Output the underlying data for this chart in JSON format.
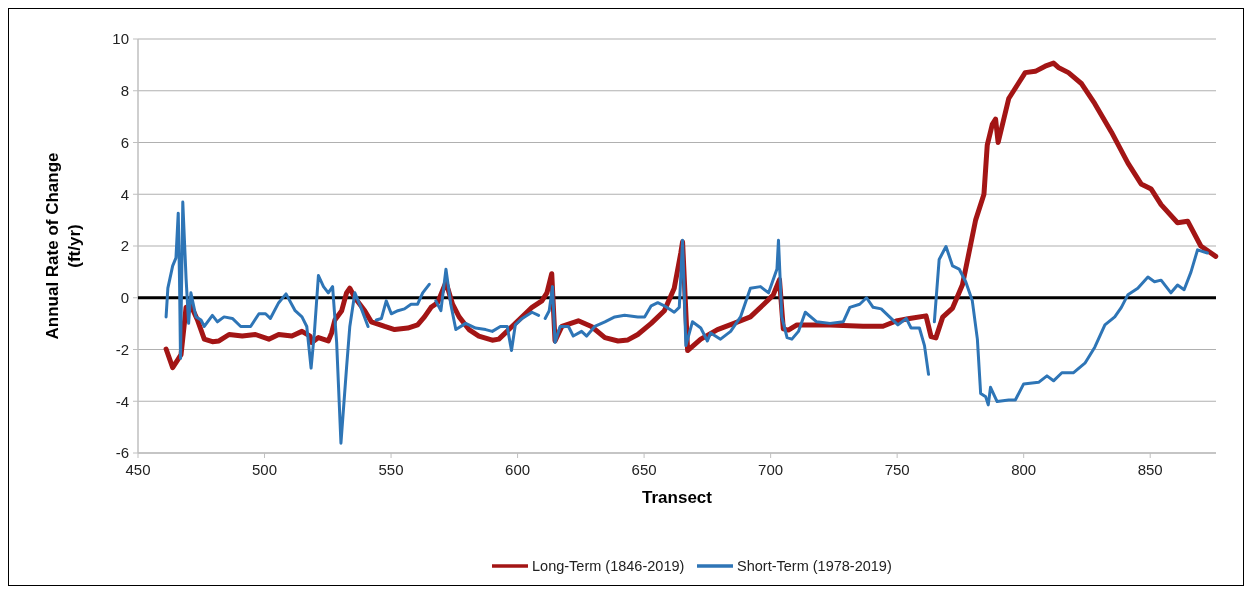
{
  "chart_data": {
    "type": "line",
    "xlabel": "Transect",
    "ylabel": "Annual Rate of Change (ft/yr)",
    "xlim": [
      450,
      876
    ],
    "xticks": [
      450,
      500,
      550,
      600,
      650,
      700,
      750,
      800,
      850
    ],
    "ylim": [
      -6,
      10
    ],
    "yticks": [
      -6,
      -4,
      -2,
      0,
      2,
      4,
      6,
      8,
      10
    ],
    "grid": "y",
    "legend": "bottom",
    "marker": "none",
    "line_style": "solid",
    "ref_lines": [
      {
        "axis": "y",
        "value": 0,
        "color": "#000000"
      }
    ],
    "series": [
      {
        "name": "Long-Term (1846-2019)",
        "color": "#a31515",
        "x": [
          461.1,
          463.7,
          465.7,
          467,
          469,
          470.9,
          473.5,
          476.2,
          479.4,
          482,
          486,
          491.2,
          496.4,
          501.7,
          505.6,
          510.8,
          514.8,
          518,
          518.7,
          521.3,
          525.2,
          526.5,
          527.8,
          530.5,
          532.4,
          533.7,
          535.7,
          539.6,
          542.2,
          547.5,
          551.4,
          556.6,
          560.5,
          563.2,
          565.8,
          568.4,
          571.7,
          574.3,
          576.9,
          580.8,
          584.7,
          590,
          592.6,
          597.8,
          601.8,
          605.7,
          609.6,
          611.6,
          613.5,
          614.8,
          617.5,
          624,
          629.2,
          634.5,
          639.7,
          643.6,
          647.5,
          652.8,
          658,
          661.9,
          664.5,
          665.2,
          667.2,
          672.4,
          679,
          685.5,
          692,
          697.3,
          701,
          703.5,
          705,
          707,
          710.4,
          723.5,
          736.5,
          744.4,
          749.6,
          754.9,
          761.4,
          763.4,
          765.3,
          768,
          771.9,
          775.8,
          781,
          784.3,
          785.6,
          787.6,
          788.9,
          789.9,
          794.1,
          798,
          800.6,
          804.6,
          808.5,
          811.8,
          813.7,
          817.7,
          822.9,
          828.1,
          834.7,
          841.2,
          846.4,
          850.4,
          854.3,
          860.8,
          864.8,
          870,
          875.9
        ],
        "values": [
          -1.98,
          -2.7,
          -2.4,
          -2.2,
          -0.37,
          -0.3,
          -0.86,
          -1.6,
          -1.7,
          -1.67,
          -1.42,
          -1.48,
          -1.42,
          -1.6,
          -1.42,
          -1.48,
          -1.3,
          -1.48,
          -1.73,
          -1.54,
          -1.67,
          -1.36,
          -0.86,
          -0.5,
          0.19,
          0.37,
          0,
          -0.5,
          -0.93,
          -1.11,
          -1.23,
          -1.17,
          -1.05,
          -0.74,
          -0.37,
          -0.19,
          0.6,
          -0.25,
          -0.74,
          -1.23,
          -1.48,
          -1.64,
          -1.6,
          -1.11,
          -0.74,
          -0.37,
          -0.12,
          0.19,
          0.93,
          -1.67,
          -1.11,
          -0.89,
          -1.11,
          -1.54,
          -1.67,
          -1.63,
          -1.42,
          -0.99,
          -0.5,
          0.37,
          1.73,
          2.16,
          -2.04,
          -1.6,
          -1.23,
          -0.99,
          -0.74,
          -0.25,
          0.1,
          0.7,
          -1.2,
          -1.25,
          -1.05,
          -1.05,
          -1.1,
          -1.1,
          -0.9,
          -0.8,
          -0.7,
          -1.5,
          -1.55,
          -0.75,
          -0.4,
          0.5,
          3,
          4,
          5.9,
          6.7,
          6.9,
          6,
          7.7,
          8.3,
          8.7,
          8.75,
          8.95,
          9.07,
          8.9,
          8.7,
          8.27,
          7.5,
          6.4,
          5.2,
          4.4,
          4.2,
          3.6,
          2.9,
          2.96,
          2,
          1.6
        ]
      },
      {
        "name": "Short-Term (1978-2019)",
        "color": "#2e75b6",
        "x": [
          461.1,
          461.8,
          463.7,
          465,
          465.9,
          466.4,
          466.8,
          467.7,
          469,
          470,
          470.9,
          472.9,
          474.9,
          476.2,
          479.4,
          481.4,
          484,
          487.3,
          490.6,
          494.5,
          497.8,
          500.4,
          502.3,
          505.6,
          508.5,
          512.1,
          514.8,
          516.7,
          518.4,
          519.7,
          521.3,
          523.3,
          525.2,
          526.9,
          528.5,
          530.2,
          532.4,
          533.7,
          535.7,
          538.3,
          540.9,
          542.5,
          544.2,
          546.2,
          548.1,
          550.1,
          552.7,
          555.3,
          557.9,
          560.5,
          562.5,
          565.1,
          566.4,
          567.7,
          569.7,
          571.7,
          573.6,
          575.6,
          579.5,
          583.4,
          587.4,
          590,
          593.2,
          595.9,
          597.6,
          599.1,
          601.8,
          605.7,
          608.3,
          609.6,
          610.9,
          612.5,
          613.8,
          614.8,
          616.8,
          620.1,
          622,
          625.3,
          627.3,
          630.5,
          634.5,
          638.4,
          642.3,
          647.5,
          650.2,
          652.8,
          655.4,
          658,
          661.9,
          663.9,
          665.2,
          666.5,
          669.1,
          672.4,
          675,
          676.3,
          680.2,
          684.2,
          688.1,
          692,
          696,
          699.2,
          702.5,
          703.1,
          704.4,
          706.5,
          708.4,
          711,
          713.7,
          718.2,
          723.5,
          728.7,
          731.3,
          735.2,
          737.9,
          740.5,
          743.7,
          747,
          750.3,
          753.6,
          755.5,
          758.8,
          760.8,
          762.4,
          763.5,
          764.7,
          766.6,
          769.3,
          771.9,
          774.5,
          777.1,
          779.7,
          781.7,
          783,
          785,
          786,
          786.9,
          789.5,
          794.1,
          796.7,
          800,
          805.9,
          809.2,
          811.8,
          815.1,
          819.6,
          824.2,
          828.1,
          832.1,
          836,
          838.6,
          841.2,
          845.1,
          849.1,
          851.7,
          854.3,
          858.2,
          860.8,
          863.4,
          866.1,
          868.7,
          872.6
        ],
        "values": [
          -0.74,
          0.37,
          1.23,
          1.54,
          3.27,
          0.74,
          -2.35,
          3.7,
          0.74,
          -0.99,
          0.19,
          -0.74,
          -0.86,
          -1.11,
          -0.68,
          -0.93,
          -0.74,
          -0.8,
          -1.11,
          -1.11,
          -0.62,
          -0.62,
          -0.8,
          -0.19,
          0.15,
          -0.5,
          -0.74,
          -1.11,
          -2.72,
          -1.36,
          0.86,
          0.43,
          0.19,
          0.43,
          -1.73,
          -5.62,
          -2.72,
          -1.11,
          0.19,
          -0.43,
          -1.11,
          null,
          -0.86,
          -0.8,
          -0.12,
          -0.62,
          -0.5,
          -0.43,
          -0.25,
          -0.25,
          0.19,
          0.52,
          null,
          -0.12,
          -0.5,
          1.1,
          -0.25,
          -1.23,
          -0.99,
          -1.17,
          -1.23,
          -1.3,
          -1.11,
          -1.11,
          -2.04,
          -1.05,
          -0.8,
          -0.56,
          -0.68,
          null,
          -0.8,
          -0.5,
          0.43,
          -1.73,
          -1.11,
          -1.11,
          -1.48,
          -1.3,
          -1.48,
          -1.11,
          -0.93,
          -0.74,
          -0.68,
          -0.74,
          -0.74,
          -0.31,
          -0.19,
          -0.31,
          -0.56,
          -0.37,
          2.22,
          -1.85,
          -0.93,
          -1.17,
          -1.67,
          -1.36,
          -1.6,
          -1.3,
          -0.74,
          0.37,
          0.43,
          0.19,
          1.11,
          2.22,
          -0.74,
          -1.54,
          -1.6,
          -1.3,
          -0.56,
          -0.93,
          -0.99,
          -0.93,
          -0.37,
          -0.25,
          0,
          -0.37,
          -0.43,
          -0.74,
          -1.05,
          -0.8,
          -1.17,
          -1.17,
          -1.85,
          -2.96,
          null,
          -0.93,
          1.48,
          1.98,
          1.23,
          1.11,
          0.62,
          -0.12,
          -1.6,
          -3.7,
          -3.83,
          -4.14,
          -3.46,
          -4.01,
          -3.95,
          -3.95,
          -3.33,
          -3.27,
          -3.02,
          -3.21,
          -2.9,
          -2.9,
          -2.53,
          -1.91,
          -1.05,
          -0.74,
          -0.37,
          0.12,
          0.37,
          0.8,
          0.62,
          0.68,
          0.19,
          0.49,
          0.31,
          0.99,
          1.85,
          1.73
        ]
      }
    ]
  }
}
